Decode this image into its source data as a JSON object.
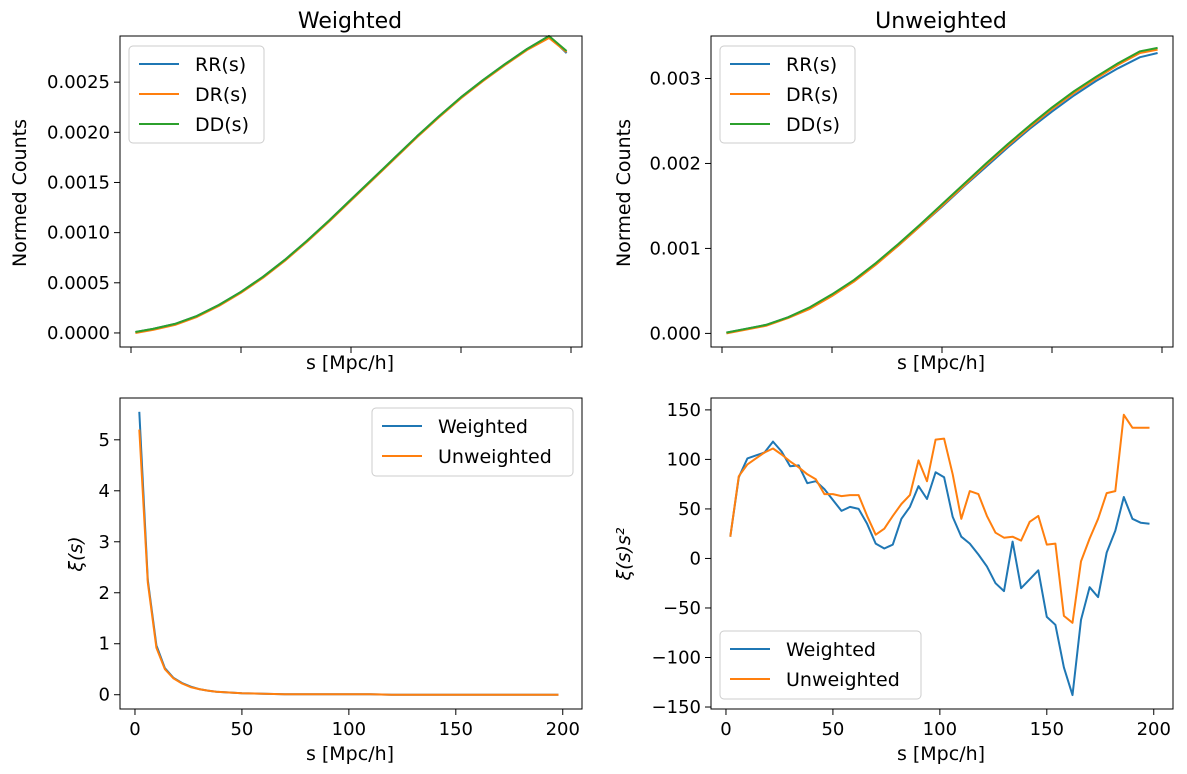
{
  "chart_data": [
    {
      "id": "weighted-counts",
      "type": "line",
      "title": "Weighted",
      "xlabel": "s [Mpc/h]",
      "ylabel": "Normed Counts",
      "xlim": [
        -5,
        205
      ],
      "ylim": [
        -0.00014,
        0.00296
      ],
      "xticks": [
        0,
        50,
        100,
        150,
        200
      ],
      "show_xticklabels": false,
      "yticks": [
        0.0,
        0.0005,
        0.001,
        0.0015,
        0.002,
        0.0025
      ],
      "ytick_labels": [
        "0.0000",
        "0.0005",
        "0.0010",
        "0.0015",
        "0.0020",
        "0.0025"
      ],
      "legend": "top-left",
      "grid": false,
      "x": [
        2,
        10,
        20,
        30,
        40,
        50,
        60,
        70,
        80,
        90,
        100,
        110,
        120,
        130,
        140,
        150,
        160,
        170,
        180,
        190,
        198
      ],
      "series": [
        {
          "name": "RR(s)",
          "color": "#1f77b4",
          "values": [
            1e-05,
            4e-05,
            9e-05,
            0.00017,
            0.00028,
            0.00041,
            0.00056,
            0.00073,
            0.00092,
            0.00112,
            0.00133,
            0.00154,
            0.00175,
            0.00196,
            0.00216,
            0.00235,
            0.00252,
            0.00268,
            0.00283,
            0.00296,
            0.00279
          ]
        },
        {
          "name": "DR(s)",
          "color": "#ff7f0e",
          "values": [
            0.0,
            3e-05,
            8e-05,
            0.00016,
            0.00027,
            0.0004,
            0.00055,
            0.00072,
            0.00091,
            0.00111,
            0.00132,
            0.00153,
            0.00174,
            0.00195,
            0.00215,
            0.00234,
            0.00251,
            0.00267,
            0.00282,
            0.00294,
            0.0028
          ]
        },
        {
          "name": "DD(s)",
          "color": "#2ca02c",
          "values": [
            1e-05,
            4e-05,
            9e-05,
            0.00017,
            0.00028,
            0.00041,
            0.00056,
            0.00073,
            0.00092,
            0.00112,
            0.00133,
            0.00154,
            0.00175,
            0.00196,
            0.00216,
            0.00235,
            0.00252,
            0.00268,
            0.00283,
            0.00296,
            0.00281
          ]
        }
      ]
    },
    {
      "id": "unweighted-counts",
      "type": "line",
      "title": "Unweighted",
      "xlabel": "s [Mpc/h]",
      "ylabel": "Normed Counts",
      "xlim": [
        -5,
        205
      ],
      "ylim": [
        -0.00016,
        0.0035
      ],
      "xticks": [
        0,
        50,
        100,
        150,
        200
      ],
      "show_xticklabels": false,
      "yticks": [
        0.0,
        0.001,
        0.002,
        0.003
      ],
      "ytick_labels": [
        "0.000",
        "0.001",
        "0.002",
        "0.003"
      ],
      "legend": "top-left",
      "grid": false,
      "x": [
        2,
        10,
        20,
        30,
        40,
        50,
        60,
        70,
        80,
        90,
        100,
        110,
        120,
        130,
        140,
        150,
        160,
        170,
        180,
        190,
        198
      ],
      "series": [
        {
          "name": "RR(s)",
          "color": "#1f77b4",
          "values": [
            1e-05,
            5e-05,
            0.0001,
            0.00019,
            0.0003,
            0.00045,
            0.00062,
            0.00082,
            0.00103,
            0.00126,
            0.00149,
            0.00173,
            0.00196,
            0.00219,
            0.00241,
            0.00261,
            0.0028,
            0.00297,
            0.00312,
            0.00325,
            0.0033
          ]
        },
        {
          "name": "DR(s)",
          "color": "#ff7f0e",
          "values": [
            0.0,
            4e-05,
            9e-05,
            0.00018,
            0.00029,
            0.00044,
            0.00061,
            0.00081,
            0.00103,
            0.00126,
            0.0015,
            0.00174,
            0.00198,
            0.00221,
            0.00243,
            0.00264,
            0.00283,
            0.003,
            0.00316,
            0.0033,
            0.00334
          ]
        },
        {
          "name": "DD(s)",
          "color": "#2ca02c",
          "values": [
            1e-05,
            5e-05,
            0.0001,
            0.00019,
            0.00031,
            0.00046,
            0.00063,
            0.00083,
            0.00105,
            0.00128,
            0.00152,
            0.00176,
            0.002,
            0.00223,
            0.00245,
            0.00266,
            0.00285,
            0.00302,
            0.00318,
            0.00332,
            0.00336
          ]
        }
      ]
    },
    {
      "id": "xi",
      "type": "line",
      "title": "",
      "xlabel": "s [Mpc/h]",
      "ylabel": "ξ(s)",
      "xlim": [
        -7,
        209
      ],
      "ylim": [
        -0.28,
        5.82
      ],
      "xticks": [
        0,
        50,
        100,
        150,
        200
      ],
      "xtick_labels": [
        "0",
        "50",
        "100",
        "150",
        "200"
      ],
      "yticks": [
        0,
        1,
        2,
        3,
        4,
        5
      ],
      "ytick_labels": [
        "0",
        "1",
        "2",
        "3",
        "4",
        "5"
      ],
      "legend": "top-right",
      "grid": false,
      "x": [
        2,
        6,
        10,
        14,
        18,
        22,
        26,
        30,
        34,
        38,
        42,
        46,
        50,
        60,
        70,
        80,
        90,
        100,
        110,
        120,
        130,
        140,
        150,
        160,
        170,
        180,
        190,
        198
      ],
      "series": [
        {
          "name": "Weighted",
          "color": "#1f77b4",
          "values": [
            5.55,
            2.25,
            0.97,
            0.52,
            0.33,
            0.23,
            0.16,
            0.11,
            0.08,
            0.06,
            0.05,
            0.04,
            0.03,
            0.02,
            0.01,
            0.01,
            0.01,
            0.01,
            0.01,
            0.0,
            0.0,
            0.0,
            0.0,
            0.0,
            0.0,
            0.0,
            0.0,
            0.0
          ]
        },
        {
          "name": "Unweighted",
          "color": "#ff7f0e",
          "values": [
            5.2,
            2.2,
            0.92,
            0.5,
            0.32,
            0.22,
            0.15,
            0.11,
            0.08,
            0.06,
            0.05,
            0.04,
            0.03,
            0.02,
            0.01,
            0.01,
            0.01,
            0.01,
            0.01,
            0.0,
            0.0,
            0.0,
            0.0,
            0.0,
            0.0,
            0.0,
            0.0,
            0.0
          ]
        }
      ]
    },
    {
      "id": "xi-s2",
      "type": "line",
      "title": "",
      "xlabel": "s [Mpc/h]",
      "ylabel": "ξ(s)s²",
      "xlim": [
        -7,
        209
      ],
      "ylim": [
        -152,
        162
      ],
      "xticks": [
        0,
        50,
        100,
        150,
        200
      ],
      "xtick_labels": [
        "0",
        "50",
        "100",
        "150",
        "200"
      ],
      "yticks": [
        -150,
        -100,
        -50,
        0,
        50,
        100,
        150
      ],
      "ytick_labels": [
        "−150",
        "−100",
        "−50",
        "0",
        "50",
        "100",
        "150"
      ],
      "legend": "bottom-left",
      "grid": false,
      "x": [
        2,
        6,
        10,
        14,
        18,
        22,
        26,
        30,
        34,
        38,
        42,
        46,
        50,
        54,
        58,
        62,
        66,
        70,
        74,
        78,
        82,
        86,
        90,
        94,
        98,
        102,
        106,
        110,
        114,
        118,
        122,
        126,
        130,
        134,
        138,
        142,
        146,
        150,
        154,
        158,
        162,
        166,
        170,
        174,
        178,
        182,
        186,
        190,
        194,
        198
      ],
      "series": [
        {
          "name": "Weighted",
          "color": "#1f77b4",
          "values": [
            22,
            82,
            101,
            104,
            107,
            118,
            108,
            93,
            94,
            76,
            78,
            70,
            59,
            48,
            52,
            50,
            35,
            15,
            10,
            14,
            40,
            52,
            73,
            60,
            87,
            82,
            42,
            22,
            15,
            4,
            -8,
            -25,
            -33,
            17,
            -30,
            -21,
            -12,
            -59,
            -67,
            -110,
            -138,
            -62,
            -29,
            -39,
            6,
            28,
            62,
            40,
            36,
            35
          ]
        },
        {
          "name": "Unweighted",
          "color": "#ff7f0e",
          "values": [
            22,
            83,
            95,
            101,
            107,
            111,
            105,
            98,
            92,
            85,
            80,
            65,
            65,
            63,
            64,
            64,
            43,
            24,
            30,
            43,
            55,
            64,
            99,
            78,
            120,
            121,
            85,
            40,
            68,
            65,
            43,
            26,
            21,
            22,
            18,
            37,
            43,
            14,
            15,
            -58,
            -65,
            -3,
            20,
            40,
            66,
            68,
            145,
            132,
            132,
            132
          ]
        }
      ]
    }
  ]
}
